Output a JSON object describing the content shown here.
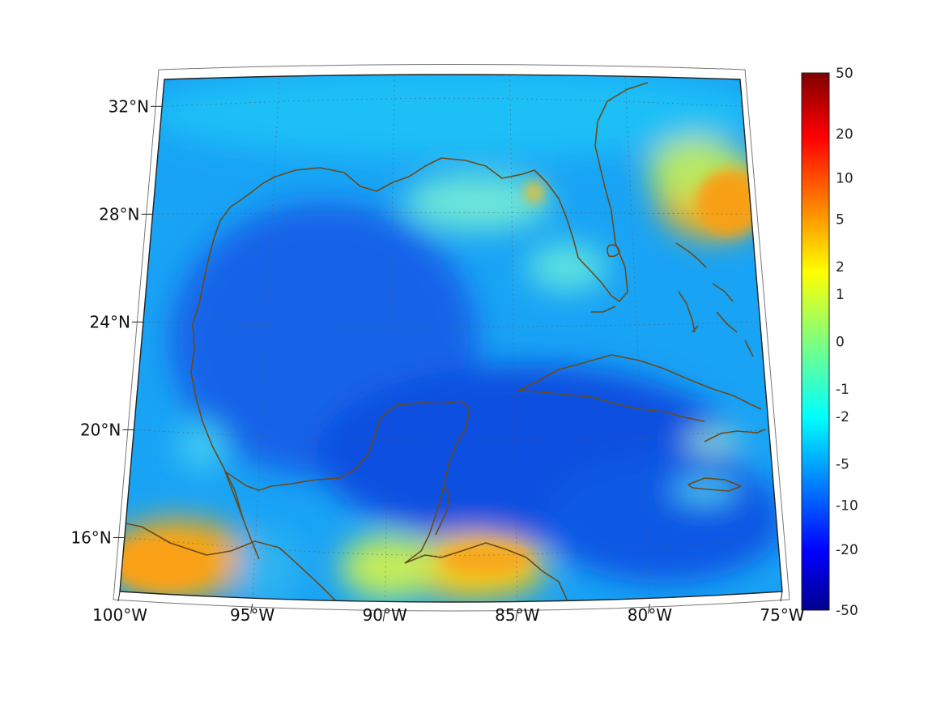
{
  "map": {
    "projection": "conic",
    "lon_range": [
      -100,
      -75
    ],
    "lat_range": [
      14,
      33
    ],
    "graticule": "dotted",
    "coastline_color": "#6b4a1a"
  },
  "axes": {
    "lat_ticks": [
      {
        "value": 32,
        "label": "32°N"
      },
      {
        "value": 28,
        "label": "28°N"
      },
      {
        "value": 24,
        "label": "24°N"
      },
      {
        "value": 20,
        "label": "20°N"
      },
      {
        "value": 16,
        "label": "16°N"
      }
    ],
    "lon_ticks": [
      {
        "value": -100,
        "label": "100°W"
      },
      {
        "value": -95,
        "label": "95°W"
      },
      {
        "value": -90,
        "label": "90°W"
      },
      {
        "value": -85,
        "label": "85°W"
      },
      {
        "value": -80,
        "label": "80°W"
      },
      {
        "value": -75,
        "label": "75°W"
      }
    ]
  },
  "colorbar": {
    "colormap": "jet",
    "scale": "symmetric-log",
    "ticks": [
      "50",
      "20",
      "10",
      "5",
      "2",
      "1",
      "0",
      "-1",
      "-2",
      "-5",
      "-10",
      "-20",
      "-50"
    ]
  }
}
